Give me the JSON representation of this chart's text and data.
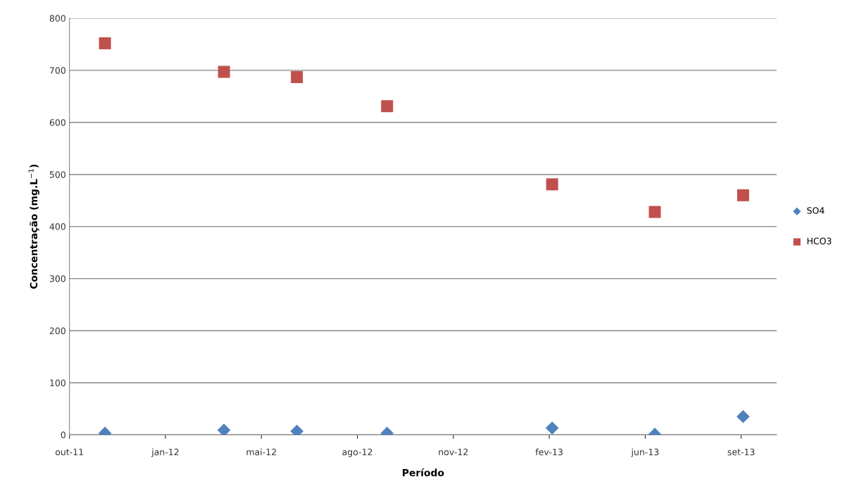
{
  "chart_data": {
    "type": "scatter",
    "xlabel": "Período",
    "ylabel": "Concentração (mg.L$^{−1}$)",
    "x": [
      "2011-11-22",
      "2012-03-25",
      "2012-06-09",
      "2012-09-11",
      "2013-03-02",
      "2013-06-17",
      "2013-09-17"
    ],
    "series": [
      {
        "name": "SO4",
        "color": "#4f81bd",
        "marker": "diamond",
        "values": [
          3,
          9,
          7,
          3,
          13,
          1,
          35
        ]
      },
      {
        "name": "HCO3",
        "color": "#c0504d",
        "marker": "square",
        "values": [
          752,
          697,
          687,
          631,
          481,
          428,
          460
        ]
      }
    ],
    "xlim": [
      "2011-10-16",
      "2013-10-22"
    ],
    "xticks": [
      {
        "value": "2011-10-16",
        "label": "out-11"
      },
      {
        "value": "2012-01-24",
        "label": "jan-12"
      },
      {
        "value": "2012-05-03",
        "label": "mai-12"
      },
      {
        "value": "2012-08-11",
        "label": "ago-12"
      },
      {
        "value": "2012-11-19",
        "label": "nov-12"
      },
      {
        "value": "2013-02-27",
        "label": "fev-13"
      },
      {
        "value": "2013-06-07",
        "label": "jun-13"
      },
      {
        "value": "2013-09-15",
        "label": "set-13"
      }
    ],
    "ylim": [
      0,
      800
    ],
    "yticks": [
      0,
      100,
      200,
      300,
      400,
      500,
      600,
      700,
      800
    ],
    "grid": "y",
    "legend": "right"
  }
}
